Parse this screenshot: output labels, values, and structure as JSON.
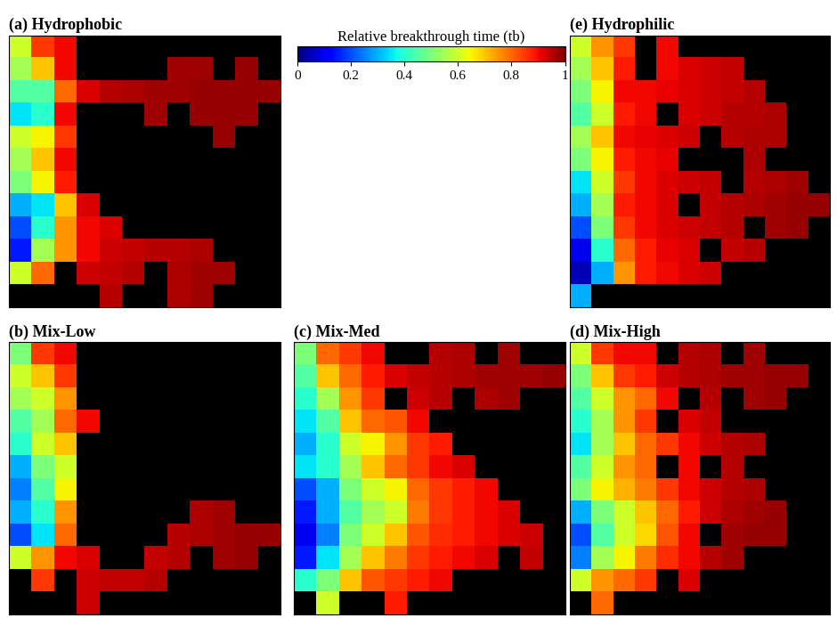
{
  "colorbar": {
    "label": "Relative breakthrough time (tb)",
    "range": [
      0,
      1
    ],
    "ticks": [
      0,
      0.2,
      0.4,
      0.6,
      0.8,
      1
    ],
    "color": "jet"
  },
  "chart_data": [
    {
      "type": "heatmap",
      "title": "(a) Hydrophobic",
      "color": "jet",
      "tick_labels": false,
      "cells": [
        [
          0.6,
          0.85,
          0.9,
          null,
          null,
          null,
          null,
          null,
          null,
          null,
          null,
          null
        ],
        [
          0.55,
          0.7,
          0.9,
          null,
          null,
          null,
          null,
          0.97,
          0.97,
          null,
          0.98,
          null
        ],
        [
          0.45,
          0.45,
          0.8,
          0.92,
          0.95,
          0.96,
          0.97,
          0.97,
          0.98,
          0.98,
          0.98,
          0.98
        ],
        [
          0.35,
          0.4,
          0.9,
          null,
          null,
          null,
          0.97,
          null,
          0.98,
          0.98,
          0.98,
          null
        ],
        [
          0.6,
          0.65,
          0.85,
          null,
          null,
          null,
          null,
          null,
          null,
          0.98,
          null,
          null
        ],
        [
          0.55,
          0.7,
          0.9,
          null,
          null,
          null,
          null,
          null,
          null,
          null,
          null,
          null
        ],
        [
          0.5,
          0.65,
          0.88,
          null,
          null,
          null,
          null,
          null,
          null,
          null,
          null,
          null
        ],
        [
          0.3,
          0.35,
          0.7,
          0.92,
          null,
          null,
          null,
          null,
          null,
          null,
          null,
          null
        ],
        [
          0.2,
          0.4,
          0.75,
          0.9,
          0.92,
          null,
          null,
          null,
          null,
          null,
          null,
          null
        ],
        [
          0.15,
          0.55,
          0.75,
          0.9,
          0.93,
          0.94,
          0.95,
          0.95,
          0.96,
          null,
          null,
          null
        ],
        [
          0.6,
          0.8,
          null,
          0.93,
          0.94,
          0.95,
          null,
          0.96,
          0.97,
          0.97,
          null,
          null
        ],
        [
          null,
          null,
          null,
          null,
          0.95,
          null,
          null,
          0.96,
          0.97,
          null,
          null,
          null
        ]
      ]
    },
    {
      "type": "heatmap",
      "title": "(b) Mix-Low",
      "color": "jet",
      "tick_labels": false,
      "cells": [
        [
          0.5,
          0.85,
          0.9,
          null,
          null,
          null,
          null,
          null,
          null,
          null,
          null,
          null
        ],
        [
          0.6,
          0.7,
          0.85,
          null,
          null,
          null,
          null,
          null,
          null,
          null,
          null,
          null
        ],
        [
          0.55,
          0.6,
          0.75,
          null,
          null,
          null,
          null,
          null,
          null,
          null,
          null,
          null
        ],
        [
          0.45,
          0.55,
          0.8,
          0.9,
          null,
          null,
          null,
          null,
          null,
          null,
          null,
          null
        ],
        [
          0.4,
          0.6,
          0.7,
          null,
          null,
          null,
          null,
          null,
          null,
          null,
          null,
          null
        ],
        [
          0.3,
          0.5,
          0.6,
          null,
          null,
          null,
          null,
          null,
          null,
          null,
          null,
          null
        ],
        [
          0.25,
          0.45,
          0.65,
          null,
          null,
          null,
          null,
          null,
          null,
          null,
          null,
          null
        ],
        [
          0.3,
          0.4,
          0.75,
          null,
          null,
          null,
          null,
          null,
          0.96,
          0.97,
          null,
          null
        ],
        [
          0.2,
          0.35,
          0.8,
          null,
          null,
          null,
          null,
          0.95,
          0.96,
          0.97,
          0.98,
          0.98
        ],
        [
          0.6,
          0.75,
          0.9,
          0.92,
          null,
          null,
          0.94,
          0.95,
          null,
          0.97,
          0.98,
          null
        ],
        [
          null,
          0.85,
          null,
          0.93,
          0.94,
          0.94,
          0.95,
          null,
          null,
          null,
          null,
          null
        ],
        [
          null,
          null,
          null,
          0.93,
          null,
          null,
          null,
          null,
          null,
          null,
          null,
          null
        ]
      ]
    },
    {
      "type": "heatmap",
      "title": "(c) Mix-Med",
      "color": "jet",
      "tick_labels": false,
      "cells": [
        [
          0.5,
          0.8,
          0.85,
          0.9,
          null,
          null,
          0.95,
          0.96,
          null,
          0.97,
          null,
          null
        ],
        [
          0.45,
          0.7,
          0.8,
          0.88,
          0.92,
          0.94,
          0.95,
          0.96,
          0.97,
          0.97,
          0.97,
          0.98
        ],
        [
          0.4,
          0.55,
          0.75,
          0.85,
          null,
          0.93,
          0.95,
          null,
          0.96,
          0.97,
          null,
          null
        ],
        [
          0.35,
          0.45,
          0.7,
          0.8,
          0.82,
          0.9,
          null,
          null,
          null,
          null,
          null,
          null
        ],
        [
          0.3,
          0.4,
          0.6,
          0.65,
          0.75,
          0.85,
          0.88,
          null,
          null,
          null,
          null,
          null
        ],
        [
          0.35,
          0.4,
          0.55,
          0.7,
          0.8,
          0.85,
          0.9,
          0.92,
          null,
          null,
          null,
          null
        ],
        [
          0.2,
          0.3,
          0.5,
          0.6,
          0.65,
          0.8,
          0.85,
          0.88,
          0.9,
          null,
          null,
          null
        ],
        [
          0.15,
          0.3,
          0.45,
          0.55,
          0.6,
          0.78,
          0.85,
          0.88,
          0.9,
          0.92,
          null,
          null
        ],
        [
          0.1,
          0.25,
          0.5,
          0.6,
          0.7,
          0.82,
          0.86,
          0.88,
          0.9,
          0.92,
          0.93,
          null
        ],
        [
          0.15,
          0.35,
          0.55,
          0.7,
          0.78,
          0.85,
          0.88,
          0.9,
          0.92,
          null,
          0.94,
          null
        ],
        [
          0.4,
          0.5,
          0.7,
          0.82,
          0.85,
          0.88,
          0.9,
          null,
          null,
          null,
          null,
          null
        ],
        [
          null,
          0.6,
          null,
          null,
          0.88,
          null,
          null,
          null,
          null,
          null,
          null,
          null
        ]
      ]
    },
    {
      "type": "heatmap",
      "title": "(d) Mix-High",
      "color": "jet",
      "tick_labels": false,
      "cells": [
        [
          0.6,
          0.85,
          0.9,
          0.9,
          null,
          0.95,
          0.96,
          null,
          0.97,
          null,
          null,
          null
        ],
        [
          0.5,
          0.7,
          0.85,
          0.88,
          0.93,
          0.95,
          0.96,
          0.97,
          0.97,
          0.98,
          0.98,
          null
        ],
        [
          0.45,
          0.6,
          0.75,
          0.8,
          0.9,
          null,
          0.95,
          null,
          0.97,
          0.98,
          null,
          null
        ],
        [
          0.4,
          0.55,
          0.75,
          0.85,
          null,
          0.92,
          0.94,
          null,
          null,
          null,
          null,
          null
        ],
        [
          0.35,
          0.55,
          0.7,
          0.8,
          0.85,
          0.9,
          0.93,
          0.95,
          0.96,
          null,
          null,
          null
        ],
        [
          0.45,
          0.6,
          0.75,
          0.8,
          null,
          0.9,
          null,
          0.95,
          null,
          null,
          null,
          null
        ],
        [
          0.5,
          0.65,
          0.72,
          0.78,
          0.85,
          0.9,
          0.93,
          0.95,
          0.96,
          null,
          null,
          null
        ],
        [
          0.3,
          0.5,
          0.6,
          0.7,
          0.8,
          0.88,
          0.93,
          0.96,
          0.97,
          0.98,
          null,
          null
        ],
        [
          0.2,
          0.45,
          0.6,
          0.68,
          0.82,
          0.9,
          null,
          0.97,
          0.98,
          0.98,
          null,
          null
        ],
        [
          0.25,
          0.55,
          0.65,
          0.78,
          0.86,
          0.9,
          0.95,
          0.97,
          null,
          null,
          null,
          null
        ],
        [
          0.6,
          0.75,
          0.8,
          0.85,
          null,
          0.92,
          null,
          null,
          null,
          null,
          null,
          null
        ],
        [
          null,
          0.8,
          null,
          null,
          null,
          null,
          null,
          null,
          null,
          null,
          null,
          null
        ]
      ]
    },
    {
      "type": "heatmap",
      "title": "(e) Hydrophilic",
      "color": "jet",
      "tick_labels": false,
      "cells": [
        [
          0.6,
          0.75,
          0.85,
          null,
          0.9,
          null,
          null,
          null,
          null,
          null,
          null,
          null
        ],
        [
          0.55,
          0.7,
          0.88,
          null,
          0.9,
          0.92,
          0.93,
          0.94,
          null,
          null,
          null,
          null
        ],
        [
          0.5,
          0.65,
          0.9,
          0.9,
          0.91,
          0.92,
          0.93,
          0.94,
          0.95,
          null,
          null,
          null
        ],
        [
          0.45,
          0.6,
          0.88,
          0.9,
          null,
          0.92,
          0.93,
          0.95,
          0.95,
          0.96,
          null,
          null
        ],
        [
          0.55,
          0.7,
          0.9,
          0.91,
          0.92,
          0.93,
          null,
          0.95,
          0.96,
          0.96,
          null,
          null
        ],
        [
          0.5,
          0.65,
          0.88,
          0.9,
          0.91,
          null,
          null,
          null,
          0.96,
          null,
          null,
          null
        ],
        [
          0.35,
          0.6,
          0.85,
          0.9,
          0.92,
          0.93,
          0.94,
          null,
          0.95,
          0.96,
          0.97,
          null
        ],
        [
          0.3,
          0.55,
          0.88,
          0.9,
          0.92,
          null,
          0.94,
          0.95,
          0.96,
          0.97,
          0.98,
          0.98
        ],
        [
          0.2,
          0.5,
          0.85,
          0.9,
          0.92,
          0.93,
          0.94,
          0.95,
          null,
          0.97,
          0.98,
          null
        ],
        [
          0.1,
          0.4,
          0.8,
          0.88,
          0.91,
          0.92,
          null,
          0.94,
          0.95,
          null,
          null,
          null
        ],
        [
          0.05,
          0.3,
          0.75,
          0.88,
          0.9,
          0.92,
          0.93,
          null,
          null,
          null,
          null,
          null
        ],
        [
          0.3,
          null,
          null,
          null,
          null,
          null,
          null,
          null,
          null,
          null,
          null,
          null
        ]
      ]
    }
  ]
}
